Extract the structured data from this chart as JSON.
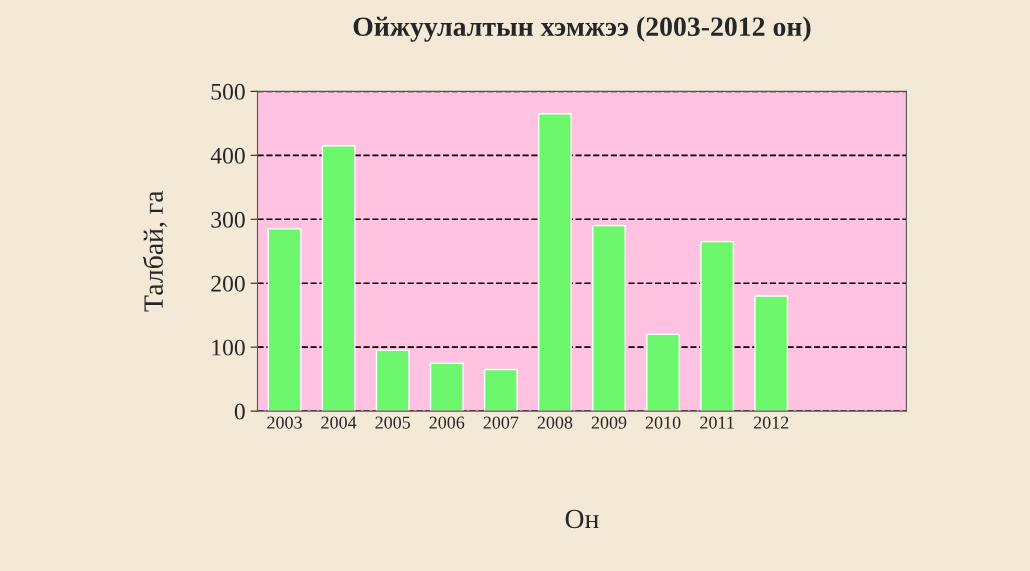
{
  "chart_data": {
    "type": "bar",
    "title": "Ойжуулалтын хэмжээ (2003-2012 он)",
    "xlabel": "Он",
    "ylabel": "Талбай, га",
    "categories": [
      "2003",
      "2004",
      "2005",
      "2006",
      "2007",
      "2008",
      "2009",
      "2010",
      "2011",
      "2012",
      null,
      null
    ],
    "values": [
      285,
      415,
      95,
      75,
      65,
      465,
      290,
      120,
      265,
      180,
      null,
      null
    ],
    "color": "#6cf76c",
    "ylim": [
      0,
      500
    ],
    "yticks": [
      0,
      100,
      200,
      300,
      400,
      500
    ],
    "grid": "y",
    "line_style": "dashed",
    "legend": false
  }
}
